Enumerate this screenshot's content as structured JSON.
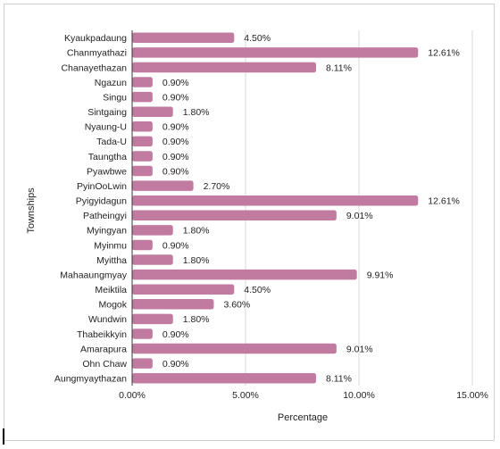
{
  "chart_data": {
    "type": "bar",
    "orientation": "horizontal",
    "title": "",
    "xlabel": "Percentage",
    "ylabel": "Townships",
    "categories": [
      "Kyaukpadaung",
      "Chanmyathazi",
      "Chanayethazan",
      "Ngazun",
      "Singu",
      "Sintgaing",
      "Nyaung-U",
      "Tada-U",
      "Taungtha",
      "Pyawbwe",
      "PyinOoLwin",
      "Pyigyidagun",
      "Patheingyi",
      "Myingyan",
      "Myinmu",
      "Myittha",
      "Mahaaungmyay",
      "Meiktila",
      "Mogok",
      "Wundwin",
      "Thabeikkyin",
      "Amarapura",
      "Ohn Chaw",
      "Aungmyaythazan"
    ],
    "values": [
      4.5,
      12.61,
      8.11,
      0.9,
      0.9,
      1.8,
      0.9,
      0.9,
      0.9,
      0.9,
      2.7,
      12.61,
      9.01,
      1.8,
      0.9,
      1.8,
      9.91,
      4.5,
      3.6,
      1.8,
      0.9,
      9.01,
      0.9,
      8.11
    ],
    "value_labels": [
      "4.50%",
      "12.61%",
      "8.11%",
      "0.90%",
      "0.90%",
      "1.80%",
      "0.90%",
      "0.90%",
      "0.90%",
      "0.90%",
      "2.70%",
      "12.61%",
      "9.01%",
      "1.80%",
      "0.90%",
      "1.80%",
      "9.91%",
      "4.50%",
      "3.60%",
      "1.80%",
      "0.90%",
      "9.01%",
      "0.90%",
      "8.11%"
    ],
    "xlim": [
      0,
      15
    ],
    "xticks": [
      0,
      5,
      10,
      15
    ],
    "xtick_labels": [
      "0.00%",
      "5.00%",
      "10.00%",
      "15.00%"
    ],
    "grid": "vertical",
    "legend": "none",
    "bar_color": "#c27ba0",
    "grid_color": "#d9d9d9"
  }
}
